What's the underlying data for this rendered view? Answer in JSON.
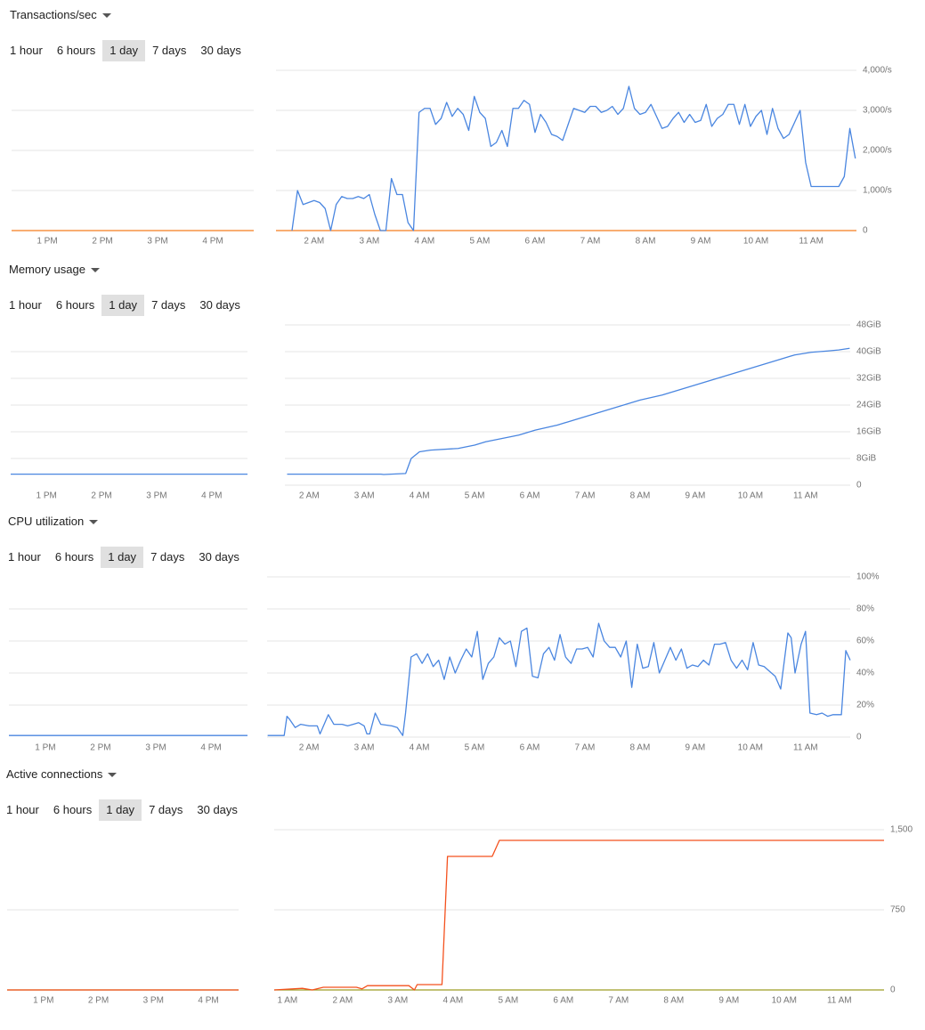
{
  "panels": [
    {
      "title": "Transactions/sec",
      "ranges": [
        "1 hour",
        "6 hours",
        "1 day",
        "7 days",
        "30 days"
      ],
      "selected": 2
    },
    {
      "title": "Memory usage",
      "ranges": [
        "1 hour",
        "6 hours",
        "1 day",
        "7 days",
        "30 days"
      ],
      "selected": 2
    },
    {
      "title": "CPU utilization",
      "ranges": [
        "1 hour",
        "6 hours",
        "1 day",
        "7 days",
        "30 days"
      ],
      "selected": 2
    },
    {
      "title": "Active connections",
      "ranges": [
        "1 hour",
        "6 hours",
        "1 day",
        "7 days",
        "30 days"
      ],
      "selected": 2
    }
  ],
  "chart_data": [
    {
      "type": "line",
      "xlim": [
        12.355,
        16.74
      ],
      "xticks": [
        {
          "value": 13,
          "label": "1 PM"
        },
        {
          "value": 14,
          "label": "2 PM"
        },
        {
          "value": 15,
          "label": "3 PM"
        },
        {
          "value": 16,
          "label": "4 PM"
        }
      ],
      "ylim": [
        0,
        4000
      ],
      "ygrid": [
        1000,
        2000,
        3000
      ],
      "series": [
        {
          "color": "#f57c1f",
          "x": [
            12.355,
            16.74
          ],
          "values": [
            0,
            0
          ]
        }
      ]
    },
    {
      "type": "line",
      "xlim": [
        1.31,
        11.82
      ],
      "xticks": [
        {
          "value": 2,
          "label": "2 AM"
        },
        {
          "value": 3,
          "label": "3 AM"
        },
        {
          "value": 4,
          "label": "4 AM"
        },
        {
          "value": 5,
          "label": "5 AM"
        },
        {
          "value": 6,
          "label": "6 AM"
        },
        {
          "value": 7,
          "label": "7 AM"
        },
        {
          "value": 8,
          "label": "8 AM"
        },
        {
          "value": 9,
          "label": "9 AM"
        },
        {
          "value": 10,
          "label": "10 AM"
        },
        {
          "value": 11,
          "label": "11 AM"
        }
      ],
      "ylim": [
        0,
        4000
      ],
      "yticks": [
        0,
        {
          "value": 1000,
          "label": "1,000/s"
        },
        {
          "value": 2000,
          "label": "2,000/s"
        },
        {
          "value": 3000,
          "label": "3,000/s"
        },
        {
          "value": 4000,
          "label": "4,000/s"
        }
      ],
      "series": [
        {
          "color": "#f57c1f",
          "x": [
            1.31,
            11.82
          ],
          "values": [
            0,
            0
          ]
        },
        {
          "color": "#4a86e0",
          "x": [
            1.6,
            1.7,
            1.8,
            1.9,
            2.0,
            2.1,
            2.2,
            2.3,
            2.4,
            2.5,
            2.6,
            2.7,
            2.8,
            2.9,
            3.0,
            3.1,
            3.2,
            3.3,
            3.4,
            3.5,
            3.6,
            3.7,
            3.8,
            3.9,
            4.0,
            4.1,
            4.2,
            4.3,
            4.4,
            4.5,
            4.6,
            4.7,
            4.8,
            4.9,
            5.0,
            5.1,
            5.2,
            5.3,
            5.4,
            5.5,
            5.6,
            5.7,
            5.8,
            5.9,
            6.0,
            6.1,
            6.2,
            6.3,
            6.4,
            6.5,
            6.6,
            6.7,
            6.8,
            6.9,
            7.0,
            7.1,
            7.2,
            7.3,
            7.4,
            7.5,
            7.6,
            7.7,
            7.8,
            7.9,
            8.0,
            8.1,
            8.2,
            8.3,
            8.4,
            8.5,
            8.6,
            8.7,
            8.8,
            8.9,
            9.0,
            9.1,
            9.2,
            9.3,
            9.4,
            9.5,
            9.6,
            9.7,
            9.8,
            9.9,
            10.0,
            10.1,
            10.2,
            10.3,
            10.4,
            10.5,
            10.6,
            10.7,
            10.8,
            10.9,
            11.0,
            11.1,
            11.2,
            11.3,
            11.4,
            11.5,
            11.6,
            11.7,
            11.8
          ],
          "values": [
            0,
            1000,
            650,
            700,
            750,
            700,
            550,
            0,
            650,
            850,
            800,
            800,
            850,
            800,
            900,
            400,
            0,
            0,
            1300,
            900,
            900,
            200,
            0,
            2950,
            3050,
            3050,
            2650,
            2800,
            3200,
            2850,
            3050,
            2900,
            2500,
            3350,
            2950,
            2800,
            2100,
            2200,
            2500,
            2100,
            3050,
            3050,
            3250,
            3150,
            2450,
            2900,
            2700,
            2400,
            2350,
            2250,
            2650,
            3050,
            3000,
            2950,
            3100,
            3100,
            2950,
            3000,
            3100,
            2900,
            3050,
            3600,
            3050,
            2900,
            2950,
            3150,
            2850,
            2550,
            2600,
            2800,
            2950,
            2700,
            2900,
            2700,
            2750,
            3150,
            2600,
            2800,
            2900,
            3150,
            3150,
            2650,
            3150,
            2600,
            2850,
            3000,
            2400,
            3050,
            2550,
            2300,
            2400,
            2700,
            3000,
            1700,
            1100,
            1100,
            1100,
            1100,
            1100,
            1100,
            1350,
            2550,
            1800
          ]
        }
      ]
    },
    {
      "type": "line",
      "xlim": [
        12.35,
        16.65
      ],
      "xticks": [
        {
          "value": 13,
          "label": "1 PM"
        },
        {
          "value": 14,
          "label": "2 PM"
        },
        {
          "value": 15,
          "label": "3 PM"
        },
        {
          "value": 16,
          "label": "4 PM"
        }
      ],
      "ylim": [
        0,
        48
      ],
      "ygrid": [
        8,
        16,
        24,
        32,
        40
      ],
      "series": [
        {
          "color": "#4a86e0",
          "x": [
            12.35,
            16.65
          ],
          "values": [
            3.3,
            3.3
          ]
        }
      ]
    },
    {
      "type": "line",
      "xlim": [
        1.56,
        11.81
      ],
      "xticks": [
        {
          "value": 2,
          "label": "2 AM"
        },
        {
          "value": 3,
          "label": "3 AM"
        },
        {
          "value": 4,
          "label": "4 AM"
        },
        {
          "value": 5,
          "label": "5 AM"
        },
        {
          "value": 6,
          "label": "6 AM"
        },
        {
          "value": 7,
          "label": "7 AM"
        },
        {
          "value": 8,
          "label": "8 AM"
        },
        {
          "value": 9,
          "label": "9 AM"
        },
        {
          "value": 10,
          "label": "10 AM"
        },
        {
          "value": 11,
          "label": "11 AM"
        }
      ],
      "ylim": [
        0,
        48
      ],
      "yticks": [
        0,
        {
          "value": 8,
          "label": "8GiB"
        },
        {
          "value": 16,
          "label": "16GiB"
        },
        {
          "value": 24,
          "label": "24GiB"
        },
        {
          "value": 32,
          "label": "32GiB"
        },
        {
          "value": 40,
          "label": "40GiB"
        },
        {
          "value": 48,
          "label": "48GiB"
        }
      ],
      "series": [
        {
          "color": "#4a86e0",
          "x": [
            1.6,
            3.3,
            3.35,
            3.75,
            3.85,
            4.0,
            4.2,
            4.7,
            5.0,
            5.2,
            5.5,
            5.8,
            6.1,
            6.5,
            6.8,
            7.1,
            7.4,
            7.7,
            8.0,
            8.4,
            8.7,
            9.0,
            9.3,
            9.6,
            9.9,
            10.2,
            10.5,
            10.8,
            11.1,
            11.4,
            11.6,
            11.8
          ],
          "values": [
            3.3,
            3.3,
            3.2,
            3.5,
            8,
            10,
            10.5,
            11,
            12,
            13,
            14,
            15,
            16.5,
            18,
            19.5,
            21,
            22.5,
            24,
            25.5,
            27,
            28.5,
            30,
            31.5,
            33,
            34.5,
            36,
            37.5,
            39,
            39.8,
            40.2,
            40.5,
            41
          ]
        }
      ]
    },
    {
      "type": "line",
      "xlim": [
        12.34,
        16.66
      ],
      "xticks": [
        {
          "value": 13,
          "label": "1 PM"
        },
        {
          "value": 14,
          "label": "2 PM"
        },
        {
          "value": 15,
          "label": "3 PM"
        },
        {
          "value": 16,
          "label": "4 PM"
        }
      ],
      "ylim": [
        0,
        100
      ],
      "ygrid": [
        20,
        40,
        60,
        80
      ],
      "series": [
        {
          "color": "#4a86e0",
          "x": [
            12.34,
            16.66
          ],
          "values": [
            1,
            1
          ]
        }
      ]
    },
    {
      "type": "line",
      "xlim": [
        1.24,
        11.81
      ],
      "xticks": [
        {
          "value": 2,
          "label": "2 AM"
        },
        {
          "value": 3,
          "label": "3 AM"
        },
        {
          "value": 4,
          "label": "4 AM"
        },
        {
          "value": 5,
          "label": "5 AM"
        },
        {
          "value": 6,
          "label": "6 AM"
        },
        {
          "value": 7,
          "label": "7 AM"
        },
        {
          "value": 8,
          "label": "8 AM"
        },
        {
          "value": 9,
          "label": "9 AM"
        },
        {
          "value": 10,
          "label": "10 AM"
        },
        {
          "value": 11,
          "label": "11 AM"
        }
      ],
      "ylim": [
        0,
        100
      ],
      "yticks": [
        0,
        {
          "value": 20,
          "label": "20%"
        },
        {
          "value": 40,
          "label": "40%"
        },
        {
          "value": 60,
          "label": "60%"
        },
        {
          "value": 80,
          "label": "80%"
        },
        {
          "value": 100,
          "label": "100%"
        }
      ],
      "series": [
        {
          "color": "#4a86e0",
          "x": [
            1.25,
            1.55,
            1.6,
            1.65,
            1.75,
            1.85,
            2.0,
            2.15,
            2.2,
            2.35,
            2.45,
            2.6,
            2.7,
            2.8,
            2.9,
            3.0,
            3.05,
            3.1,
            3.2,
            3.3,
            3.5,
            3.6,
            3.7,
            3.75,
            3.85,
            3.95,
            4.05,
            4.15,
            4.25,
            4.35,
            4.45,
            4.55,
            4.65,
            4.75,
            4.85,
            4.95,
            5.05,
            5.15,
            5.25,
            5.35,
            5.45,
            5.55,
            5.65,
            5.75,
            5.85,
            5.95,
            6.05,
            6.15,
            6.25,
            6.35,
            6.45,
            6.55,
            6.65,
            6.75,
            6.85,
            6.95,
            7.05,
            7.15,
            7.25,
            7.35,
            7.45,
            7.55,
            7.65,
            7.75,
            7.85,
            7.95,
            8.05,
            8.15,
            8.25,
            8.35,
            8.45,
            8.55,
            8.65,
            8.75,
            8.85,
            8.95,
            9.05,
            9.15,
            9.25,
            9.35,
            9.45,
            9.55,
            9.65,
            9.75,
            9.85,
            9.95,
            10.05,
            10.15,
            10.25,
            10.35,
            10.45,
            10.55,
            10.68,
            10.74,
            10.81,
            10.92,
            11.0,
            11.08,
            11.2,
            11.3,
            11.4,
            11.5,
            11.65,
            11.73,
            11.81
          ],
          "values": [
            1,
            1,
            13,
            11,
            6,
            8,
            7,
            7,
            2,
            14,
            8,
            8,
            7,
            8,
            9,
            7,
            2,
            2,
            15,
            8,
            7,
            6,
            1,
            15,
            50,
            52,
            46,
            52,
            44,
            48,
            36,
            50,
            40,
            48,
            55,
            50,
            66,
            36,
            46,
            50,
            62,
            58,
            60,
            44,
            66,
            68,
            38,
            37,
            52,
            56,
            48,
            64,
            50,
            46,
            55,
            55,
            56,
            50,
            71,
            60,
            56,
            56,
            50,
            60,
            31,
            58,
            43,
            44,
            59,
            40,
            48,
            56,
            48,
            55,
            43,
            45,
            44,
            48,
            45,
            58,
            58,
            59,
            48,
            43,
            48,
            42,
            59,
            45,
            44,
            41,
            38,
            30,
            65,
            62,
            40,
            58,
            66,
            15,
            14,
            15,
            13,
            14,
            14,
            54,
            48
          ]
        }
      ]
    },
    {
      "type": "line",
      "xlim": [
        12.34,
        16.55
      ],
      "xticks": [
        {
          "value": 13,
          "label": "1 PM"
        },
        {
          "value": 14,
          "label": "2 PM"
        },
        {
          "value": 15,
          "label": "3 PM"
        },
        {
          "value": 16,
          "label": "4 PM"
        }
      ],
      "ylim": [
        0,
        1500
      ],
      "ygrid": [
        750
      ],
      "series": [
        {
          "color": "#9e9d24",
          "x": [
            12.34,
            16.55
          ],
          "values": [
            0,
            0
          ]
        },
        {
          "color": "#f4511e",
          "x": [
            12.34,
            16.55
          ],
          "values": [
            0,
            0
          ]
        }
      ]
    },
    {
      "type": "line",
      "xlim": [
        0.76,
        11.81
      ],
      "xticks": [
        {
          "value": 1,
          "label": "1 AM"
        },
        {
          "value": 2,
          "label": "2 AM"
        },
        {
          "value": 3,
          "label": "3 AM"
        },
        {
          "value": 4,
          "label": "4 AM"
        },
        {
          "value": 5,
          "label": "5 AM"
        },
        {
          "value": 6,
          "label": "6 AM"
        },
        {
          "value": 7,
          "label": "7 AM"
        },
        {
          "value": 8,
          "label": "8 AM"
        },
        {
          "value": 9,
          "label": "9 AM"
        },
        {
          "value": 10,
          "label": "10 AM"
        },
        {
          "value": 11,
          "label": "11 AM"
        }
      ],
      "ylim": [
        0,
        1500
      ],
      "yticks": [
        0,
        750,
        {
          "value": 1500,
          "label": "1,500"
        }
      ],
      "series": [
        {
          "color": "#9e9d24",
          "x": [
            0.76,
            11.81
          ],
          "values": [
            0,
            0
          ]
        },
        {
          "color": "#f4511e",
          "x": [
            0.76,
            1.27,
            1.45,
            1.65,
            2.25,
            2.35,
            2.45,
            3.2,
            3.3,
            3.35,
            3.8,
            3.9,
            4.71,
            4.84,
            11.81
          ],
          "values": [
            0,
            15,
            0,
            25,
            25,
            10,
            40,
            40,
            0,
            50,
            50,
            1250,
            1250,
            1400,
            1400
          ]
        }
      ]
    }
  ]
}
